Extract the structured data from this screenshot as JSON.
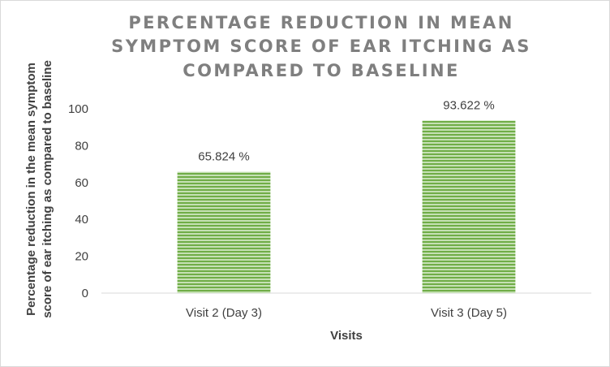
{
  "chart_data": {
    "type": "bar",
    "title_lines": [
      "PERCENTAGE REDUCTION IN MEAN",
      "SYMPTOM SCORE OF EAR ITCHING AS",
      "COMPARED TO BASELINE"
    ],
    "xlabel": "Visits",
    "ylabel_lines": [
      "Percentage reduction in the mean symptom",
      "score of ear itching as compared to baseline"
    ],
    "categories": [
      "Visit 2 (Day 3)",
      "Visit 3 (Day 5)"
    ],
    "values": [
      65.824,
      93.622
    ],
    "data_labels": [
      "65.824 %",
      "93.622 %"
    ],
    "yticks": [
      0,
      20,
      40,
      60,
      80,
      100
    ],
    "ylim": [
      0,
      100
    ],
    "grid": false,
    "legend": "none",
    "bar_color": "#70ad47",
    "bar_stripe_color": "#c5e0b4"
  }
}
